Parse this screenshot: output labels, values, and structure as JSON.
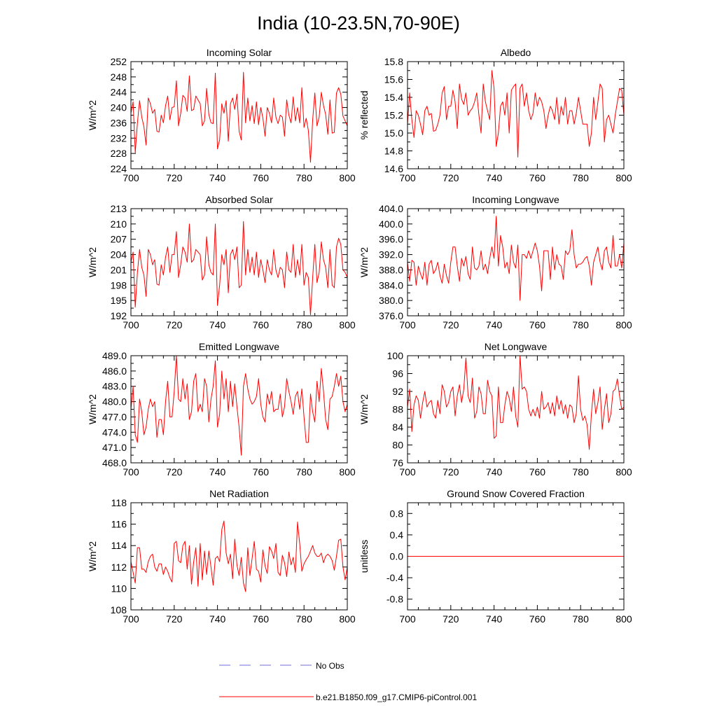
{
  "title": "India (10-23.5N,70-90E)",
  "legend": {
    "obs_label": "No Obs",
    "model_label": "b.e21.B1850.f09_g17.CMIP6-piControl.001",
    "obs_color": "#6f6fd8",
    "model_color": "#ff0000"
  },
  "chart_data": [
    {
      "type": "line",
      "title": "Incoming Solar",
      "xlabel": "",
      "ylabel": "W/m^2",
      "xlim": [
        700,
        800
      ],
      "ylim": [
        224,
        252
      ],
      "xticks": [
        700,
        720,
        740,
        760,
        780,
        800
      ],
      "yticks": [
        224,
        228,
        232,
        236,
        240,
        244,
        248,
        252
      ],
      "ytick_labels": [
        "224",
        "228",
        "232",
        "236",
        "240",
        "244",
        "248",
        "252"
      ],
      "series": [
        {
          "name": "b.e21.B1850.f09_g17.CMIP6-piControl.001",
          "color": "#ff0000",
          "x0": 700,
          "dx": 1,
          "values": [
            238.5,
            241.5,
            228.2,
            236.0,
            241.8,
            237.5,
            235.0,
            230.2,
            242.5,
            241.0,
            238.5,
            239.5,
            233.8,
            233.6,
            238.0,
            236.0,
            240.5,
            243.0,
            236.8,
            240.0,
            240.2,
            247.0,
            235.2,
            238.5,
            243.2,
            242.5,
            239.0,
            248.3,
            239.2,
            239.5,
            243.0,
            242.0,
            241.0,
            235.2,
            236.5,
            245.0,
            238.2,
            236.0,
            235.8,
            249.0,
            229.2,
            231.5,
            241.0,
            238.5,
            241.8,
            231.2,
            241.0,
            242.5,
            239.5,
            243.5,
            233.8,
            231.5,
            249.2,
            236.0,
            242.5,
            236.5,
            240.5,
            235.8,
            241.5,
            235.5,
            240.0,
            237.2,
            232.5,
            240.0,
            238.5,
            236.0,
            242.5,
            237.5,
            235.8,
            238.0,
            237.5,
            232.5,
            242.0,
            238.0,
            236.0,
            242.8,
            236.5,
            240.0,
            236.0,
            245.2,
            234.8,
            237.2,
            234.0,
            225.7,
            236.8,
            243.8,
            235.2,
            237.5,
            244.0,
            240.5,
            238.2,
            233.0,
            242.0,
            233.3,
            233.5,
            243.8,
            245.2,
            243.5,
            237.8,
            236.5,
            235.2
          ]
        }
      ]
    },
    {
      "type": "line",
      "title": "Albedo",
      "xlabel": "",
      "ylabel": "% reflected",
      "xlim": [
        700,
        800
      ],
      "ylim": [
        14.6,
        15.8
      ],
      "xticks": [
        700,
        720,
        740,
        760,
        780,
        800
      ],
      "yticks": [
        14.6,
        14.8,
        15.0,
        15.2,
        15.4,
        15.6,
        15.8
      ],
      "ytick_labels": [
        "14.6",
        "14.8",
        "15.0",
        "15.2",
        "15.4",
        "15.6",
        "15.8"
      ],
      "series": [
        {
          "name": "b.e21.B1850.f09_g17.CMIP6-piControl.001",
          "color": "#ff0000",
          "x0": 700,
          "dx": 1,
          "values": [
            15.1,
            15.45,
            15.15,
            14.95,
            15.25,
            15.2,
            15.1,
            14.98,
            15.25,
            15.3,
            15.2,
            15.22,
            15.02,
            15.03,
            15.1,
            15.2,
            15.45,
            15.52,
            15.15,
            15.3,
            15.3,
            15.48,
            15.35,
            15.05,
            15.55,
            15.38,
            15.32,
            15.45,
            15.2,
            15.25,
            15.28,
            15.35,
            15.45,
            15.2,
            15.0,
            15.55,
            15.35,
            15.25,
            15.15,
            15.7,
            15.5,
            14.85,
            15.0,
            15.3,
            15.35,
            15.2,
            15.45,
            15.0,
            15.48,
            15.52,
            15.55,
            14.73,
            15.5,
            15.55,
            15.3,
            15.45,
            15.25,
            15.15,
            15.22,
            15.45,
            15.3,
            15.4,
            15.35,
            15.25,
            15.05,
            15.2,
            15.3,
            15.25,
            15.15,
            15.4,
            15.1,
            15.3,
            15.2,
            15.4,
            15.1,
            15.25,
            15.25,
            15.1,
            15.22,
            15.4,
            15.25,
            15.1,
            15.1,
            15.1,
            14.85,
            15.0,
            15.4,
            15.15,
            15.35,
            15.55,
            15.5,
            14.9,
            15.15,
            15.2,
            15.1,
            15.0,
            15.2,
            15.35,
            15.5,
            15.48,
            15.2
          ]
        }
      ]
    },
    {
      "type": "line",
      "title": "Absorbed Solar",
      "xlabel": "",
      "ylabel": "W/m^2",
      "xlim": [
        700,
        800
      ],
      "ylim": [
        192,
        213
      ],
      "xticks": [
        700,
        720,
        740,
        760,
        780,
        800
      ],
      "yticks": [
        192,
        195,
        198,
        201,
        204,
        207,
        210,
        213
      ],
      "ytick_labels": [
        "192",
        "195",
        "198",
        "201",
        "204",
        "207",
        "210",
        "213"
      ],
      "series": [
        {
          "name": "b.e21.B1850.f09_g17.CMIP6-piControl.001",
          "color": "#ff0000",
          "x0": 700,
          "dx": 1,
          "values": [
            202.5,
            204.5,
            193.7,
            200.5,
            205.0,
            201.5,
            200.0,
            195.8,
            205.0,
            204.0,
            202.0,
            203.0,
            198.2,
            198.0,
            202.0,
            200.0,
            203.5,
            205.5,
            200.5,
            204.0,
            204.0,
            208.5,
            199.5,
            202.0,
            205.5,
            204.5,
            202.5,
            210.0,
            202.5,
            203.0,
            205.0,
            204.5,
            204.0,
            199.0,
            200.0,
            207.5,
            202.0,
            200.5,
            200.0,
            210.0,
            194.0,
            198.0,
            204.0,
            202.0,
            205.0,
            196.5,
            204.0,
            205.0,
            203.0,
            205.5,
            197.5,
            198.0,
            210.5,
            200.0,
            205.0,
            200.5,
            203.5,
            200.0,
            204.5,
            199.5,
            203.0,
            201.0,
            198.5,
            203.0,
            201.0,
            200.0,
            205.0,
            201.0,
            199.5,
            201.5,
            201.0,
            197.5,
            204.5,
            201.0,
            200.5,
            206.0,
            199.5,
            203.0,
            200.0,
            206.0,
            198.0,
            200.5,
            199.5,
            192.2,
            199.5,
            206.0,
            198.5,
            200.5,
            206.5,
            203.0,
            201.5,
            197.5,
            205.0,
            198.0,
            197.5,
            205.5,
            207.2,
            206.0,
            201.0,
            200.5,
            199.5
          ]
        }
      ]
    },
    {
      "type": "line",
      "title": "Incoming Longwave",
      "xlabel": "",
      "ylabel": "W/m^2",
      "xlim": [
        700,
        800
      ],
      "ylim": [
        376.0,
        404.0
      ],
      "xticks": [
        700,
        720,
        740,
        760,
        780,
        800
      ],
      "yticks": [
        376,
        380,
        384,
        388,
        392,
        396,
        400,
        404
      ],
      "ytick_labels": [
        "376.0",
        "380.0",
        "384.0",
        "388.0",
        "392.0",
        "396.0",
        "400.0",
        "404.0"
      ],
      "series": [
        {
          "name": "b.e21.B1850.f09_g17.CMIP6-piControl.001",
          "color": "#ff0000",
          "x0": 700,
          "dx": 1,
          "values": [
            390.0,
            385.0,
            390.5,
            390.0,
            384.0,
            389.0,
            387.0,
            385.5,
            390.0,
            384.0,
            389.5,
            390.5,
            387.0,
            388.0,
            390.0,
            386.5,
            384.5,
            389.5,
            386.5,
            384.5,
            390.0,
            394.0,
            394.0,
            389.0,
            385.0,
            391.0,
            389.0,
            391.5,
            387.0,
            385.5,
            394.0,
            388.5,
            388.0,
            389.0,
            393.0,
            388.0,
            389.5,
            387.0,
            391.0,
            394.0,
            391.0,
            402.0,
            389.0,
            397.0,
            394.0,
            388.5,
            390.0,
            387.0,
            394.5,
            390.0,
            388.5,
            394.5,
            380.0,
            392.0,
            392.0,
            391.0,
            393.0,
            391.0,
            393.0,
            395.0,
            393.0,
            389.0,
            382.5,
            393.0,
            393.0,
            393.0,
            385.5,
            394.0,
            388.0,
            392.0,
            389.5,
            389.0,
            385.5,
            393.0,
            392.0,
            393.0,
            398.5,
            392.0,
            388.5,
            389.5,
            389.5,
            390.0,
            391.0,
            391.5,
            389.0,
            384.0,
            390.0,
            392.0,
            394.0,
            390.0,
            388.0,
            393.0,
            394.0,
            390.0,
            388.5,
            397.0,
            389.0,
            389.0,
            392.0,
            388.5,
            395.0
          ]
        }
      ]
    },
    {
      "type": "line",
      "title": "Emitted Longwave",
      "xlabel": "",
      "ylabel": "W/m^2",
      "xlim": [
        700,
        800
      ],
      "ylim": [
        468.0,
        489.0
      ],
      "xticks": [
        700,
        720,
        740,
        760,
        780,
        800
      ],
      "yticks": [
        468,
        471,
        474,
        477,
        480,
        483,
        486,
        489
      ],
      "ytick_labels": [
        "468.0",
        "471.0",
        "474.0",
        "477.0",
        "480.0",
        "483.0",
        "486.0",
        "489.0"
      ],
      "series": [
        {
          "name": "b.e21.B1850.f09_g17.CMIP6-piControl.001",
          "color": "#ff0000",
          "x0": 700,
          "dx": 1,
          "values": [
            478.5,
            483.0,
            473.5,
            472.0,
            480.5,
            478.0,
            473.5,
            475.0,
            478.5,
            480.5,
            479.0,
            480.0,
            473.0,
            476.5,
            476.5,
            473.5,
            480.0,
            484.0,
            477.0,
            477.0,
            482.0,
            489.0,
            480.5,
            480.0,
            484.5,
            480.5,
            483.5,
            476.5,
            478.0,
            484.0,
            485.5,
            478.0,
            479.5,
            478.0,
            484.5,
            483.0,
            476.0,
            480.5,
            483.0,
            488.0,
            475.0,
            477.5,
            486.0,
            480.5,
            484.5,
            478.0,
            484.0,
            479.0,
            483.5,
            479.0,
            475.0,
            469.5,
            483.0,
            485.5,
            482.5,
            480.5,
            479.5,
            480.0,
            481.0,
            484.5,
            479.5,
            477.0,
            476.0,
            481.5,
            479.5,
            482.0,
            478.0,
            478.5,
            478.5,
            481.5,
            477.0,
            479.0,
            484.5,
            482.0,
            480.0,
            477.5,
            481.0,
            482.0,
            478.5,
            482.5,
            477.0,
            472.0,
            472.0,
            481.5,
            478.0,
            476.0,
            484.0,
            480.0,
            486.5,
            482.0,
            476.5,
            474.5,
            480.5,
            481.0,
            483.0,
            485.5,
            483.0,
            485.0,
            480.0,
            478.0,
            479.5
          ]
        }
      ]
    },
    {
      "type": "line",
      "title": "Net Longwave",
      "xlabel": "",
      "ylabel": "W/m^2",
      "xlim": [
        700,
        800
      ],
      "ylim": [
        76,
        100
      ],
      "xticks": [
        700,
        720,
        740,
        760,
        780,
        800
      ],
      "yticks": [
        76,
        80,
        84,
        88,
        92,
        96,
        100
      ],
      "ytick_labels": [
        "76",
        "80",
        "84",
        "88",
        "92",
        "96",
        "100"
      ],
      "series": [
        {
          "name": "b.e21.B1850.f09_g17.CMIP6-piControl.001",
          "color": "#ff0000",
          "x0": 700,
          "dx": 1,
          "values": [
            88.5,
            92.5,
            83.0,
            89.0,
            91.0,
            90.0,
            86.0,
            89.5,
            92.0,
            88.5,
            89.5,
            90.0,
            87.0,
            86.0,
            90.0,
            87.0,
            93.5,
            92.0,
            88.5,
            89.5,
            92.0,
            93.0,
            86.5,
            91.0,
            93.5,
            89.5,
            92.5,
            99.5,
            91.0,
            89.5,
            95.0,
            86.0,
            87.5,
            93.0,
            91.5,
            87.0,
            87.0,
            94.5,
            92.0,
            91.0,
            81.5,
            82.0,
            93.0,
            85.0,
            85.0,
            89.0,
            92.0,
            90.5,
            87.5,
            93.0,
            86.5,
            84.0,
            100.0,
            92.5,
            93.0,
            92.0,
            88.0,
            86.5,
            88.0,
            86.5,
            88.5,
            86.0,
            92.0,
            88.0,
            88.5,
            89.5,
            87.0,
            89.5,
            86.5,
            91.0,
            88.0,
            90.0,
            87.0,
            89.0,
            86.0,
            89.0,
            88.5,
            85.0,
            87.0,
            95.5,
            88.0,
            85.5,
            86.5,
            84.5,
            79.0,
            87.0,
            92.5,
            87.0,
            89.5,
            93.0,
            83.5,
            88.0,
            91.5,
            85.0,
            87.0,
            92.0,
            92.5,
            94.8,
            91.0,
            88.0,
            88.5
          ]
        }
      ]
    },
    {
      "type": "line",
      "title": "Net Radiation",
      "xlabel": "",
      "ylabel": "W/m^2",
      "xlim": [
        700,
        800
      ],
      "ylim": [
        108,
        118
      ],
      "xticks": [
        700,
        720,
        740,
        760,
        780,
        800
      ],
      "yticks": [
        108,
        110,
        112,
        114,
        116,
        118
      ],
      "ytick_labels": [
        "108",
        "110",
        "112",
        "114",
        "116",
        "118"
      ],
      "series": [
        {
          "name": "b.e21.B1850.f09_g17.CMIP6-piControl.001",
          "color": "#ff0000",
          "x0": 700,
          "dx": 1,
          "values": [
            112.5,
            111.5,
            110.5,
            113.8,
            113.8,
            111.8,
            111.8,
            111.5,
            112.5,
            113.0,
            113.2,
            112.0,
            111.6,
            112.3,
            112.3,
            111.3,
            112.0,
            111.6,
            111.0,
            110.6,
            114.2,
            114.4,
            112.6,
            112.4,
            114.0,
            114.4,
            111.8,
            114.0,
            110.4,
            112.5,
            113.8,
            110.2,
            114.2,
            110.8,
            113.5,
            111.3,
            113.5,
            112.0,
            110.3,
            112.8,
            113.0,
            112.5,
            115.5,
            116.3,
            113.3,
            112.3,
            113.2,
            110.9,
            114.6,
            112.2,
            111.2,
            112.9,
            110.5,
            109.7,
            113.8,
            111.2,
            112.8,
            114.4,
            111.8,
            111.6,
            110.6,
            113.6,
            112.1,
            111.4,
            113.9,
            113.5,
            112.8,
            114.2,
            111.5,
            111.2,
            113.1,
            112.4,
            111.1,
            113.4,
            112.2,
            112.9,
            111.5,
            116.2,
            114.2,
            111.6,
            112.3,
            112.7,
            113.0,
            113.5,
            114.0,
            113.3,
            113.0,
            113.0,
            113.3,
            112.4,
            113.0,
            113.2,
            113.0,
            112.6,
            111.7,
            113.0,
            114.5,
            114.6,
            112.0,
            110.8,
            112.0
          ]
        }
      ]
    },
    {
      "type": "line",
      "title": "Ground Snow Covered Fraction",
      "xlabel": "",
      "ylabel": "unitless",
      "xlim": [
        700,
        800
      ],
      "ylim": [
        -1.0,
        1.0
      ],
      "xticks": [
        700,
        720,
        740,
        760,
        780,
        800
      ],
      "yticks": [
        -0.8,
        -0.4,
        0.0,
        0.4,
        0.8
      ],
      "ytick_labels": [
        "-0.8",
        "-0.4",
        "0.0",
        "0.4",
        "0.8"
      ],
      "series": [
        {
          "name": "b.e21.B1850.f09_g17.CMIP6-piControl.001",
          "color": "#ff0000",
          "x0": 700,
          "dx": 1,
          "constant": 0.0
        }
      ]
    }
  ]
}
